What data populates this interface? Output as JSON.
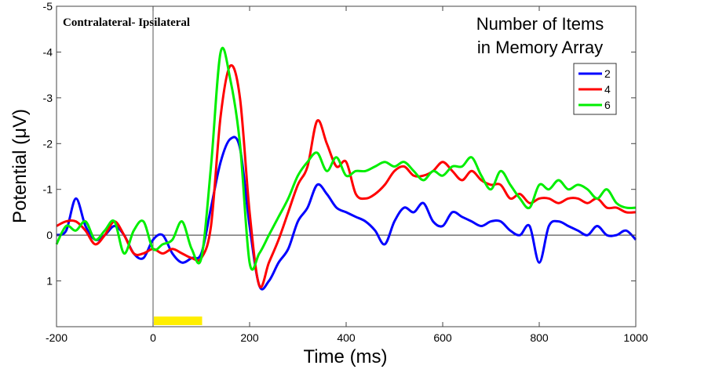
{
  "chart_data": {
    "type": "line",
    "title": "",
    "inset_title": "Contralateral- Ipsilateral",
    "xlabel": "Time (ms)",
    "ylabel": "Potential (μV)",
    "xlim": [
      -200,
      1000
    ],
    "ylim": [
      2,
      -5
    ],
    "y_axis_inverted": true,
    "xticks": [
      -200,
      0,
      200,
      400,
      600,
      800,
      1000
    ],
    "xtick_labels": [
      "-200",
      "0",
      "200",
      "400",
      "600",
      "800",
      "1000"
    ],
    "yticks": [
      -5,
      -4,
      -3,
      -2,
      -1,
      0,
      1
    ],
    "ytick_labels": [
      "-5",
      "-4",
      "-3",
      "-2",
      "-1",
      "0",
      "1"
    ],
    "grid": false,
    "zero_line": true,
    "stimulus_onset_line_ms": 0,
    "stimulus_bar": {
      "start_ms": 0,
      "end_ms": 100,
      "color": "#ffee00"
    },
    "legend": {
      "title": "Number of Items in Memory Array",
      "title_lines": [
        "Number of Items",
        "in Memory Array"
      ],
      "position": "upper right",
      "entries": [
        "2",
        "4",
        "6"
      ]
    },
    "x": [
      -200,
      -180,
      -160,
      -140,
      -120,
      -100,
      -80,
      -60,
      -40,
      -20,
      0,
      20,
      40,
      60,
      80,
      100,
      120,
      140,
      160,
      180,
      200,
      220,
      240,
      260,
      280,
      300,
      320,
      340,
      360,
      380,
      400,
      420,
      440,
      460,
      480,
      500,
      520,
      540,
      560,
      580,
      600,
      620,
      640,
      660,
      680,
      700,
      720,
      740,
      760,
      780,
      800,
      820,
      840,
      860,
      880,
      900,
      920,
      940,
      960,
      980,
      1000
    ],
    "series": [
      {
        "name": "2",
        "color": "#0000ff",
        "values": [
          0.0,
          -0.1,
          -0.8,
          -0.2,
          0.1,
          0.0,
          -0.2,
          0.0,
          0.4,
          0.5,
          0.1,
          0.0,
          0.4,
          0.6,
          0.5,
          0.4,
          -0.6,
          -1.6,
          -2.1,
          -1.9,
          -0.2,
          1.1,
          1.0,
          0.6,
          0.3,
          -0.3,
          -0.6,
          -1.1,
          -0.9,
          -0.6,
          -0.5,
          -0.4,
          -0.3,
          -0.1,
          0.2,
          -0.3,
          -0.6,
          -0.5,
          -0.7,
          -0.3,
          -0.2,
          -0.5,
          -0.4,
          -0.3,
          -0.2,
          -0.3,
          -0.3,
          -0.1,
          0.0,
          -0.2,
          0.6,
          -0.2,
          -0.3,
          -0.2,
          -0.1,
          0.0,
          -0.2,
          0.0,
          0.0,
          -0.1,
          0.1
        ]
      },
      {
        "name": "4",
        "color": "#ff0000",
        "values": [
          -0.2,
          -0.3,
          -0.3,
          -0.1,
          0.2,
          0.0,
          -0.3,
          0.0,
          0.4,
          0.4,
          0.3,
          0.4,
          0.3,
          0.4,
          0.5,
          0.5,
          -0.2,
          -2.6,
          -3.7,
          -3.0,
          -0.5,
          1.1,
          0.6,
          0.1,
          -0.5,
          -1.1,
          -1.5,
          -2.5,
          -2.0,
          -1.5,
          -1.6,
          -0.9,
          -0.8,
          -0.9,
          -1.1,
          -1.4,
          -1.5,
          -1.3,
          -1.3,
          -1.4,
          -1.6,
          -1.4,
          -1.2,
          -1.4,
          -1.2,
          -1.1,
          -1.1,
          -0.8,
          -0.9,
          -0.7,
          -0.8,
          -0.8,
          -0.7,
          -0.8,
          -0.8,
          -0.7,
          -0.8,
          -0.6,
          -0.6,
          -0.5,
          -0.5
        ]
      },
      {
        "name": "6",
        "color": "#00ee00",
        "values": [
          0.2,
          -0.2,
          -0.1,
          -0.3,
          0.1,
          -0.1,
          -0.3,
          0.4,
          -0.1,
          -0.3,
          0.3,
          0.2,
          0.1,
          -0.3,
          0.3,
          0.5,
          -1.5,
          -4.0,
          -3.4,
          -2.0,
          0.6,
          0.4,
          0.0,
          -0.4,
          -0.8,
          -1.3,
          -1.6,
          -1.8,
          -1.4,
          -1.7,
          -1.3,
          -1.4,
          -1.4,
          -1.5,
          -1.6,
          -1.5,
          -1.6,
          -1.4,
          -1.2,
          -1.4,
          -1.3,
          -1.5,
          -1.5,
          -1.7,
          -1.3,
          -1.0,
          -1.4,
          -1.1,
          -0.8,
          -0.6,
          -1.1,
          -1.0,
          -1.2,
          -1.0,
          -1.1,
          -1.0,
          -0.8,
          -1.0,
          -0.7,
          -0.6,
          -0.6
        ]
      }
    ]
  }
}
